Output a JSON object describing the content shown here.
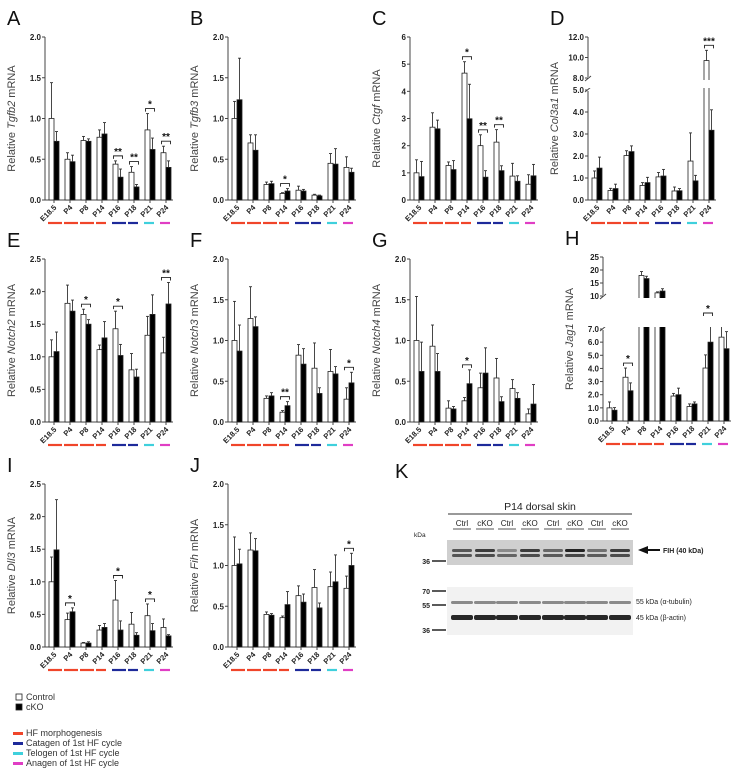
{
  "categories": [
    "E18.5",
    "P4",
    "P8",
    "P14",
    "P16",
    "P18",
    "P21",
    "P24"
  ],
  "phase_colors": [
    "#f0452a",
    "#f0452a",
    "#f0452a",
    "#f0452a",
    "#1e2a9a",
    "#1e2a9a",
    "#3fd0dc",
    "#e03ec4"
  ],
  "bar_colors": {
    "control": "#ffffff",
    "cko": "#000000"
  },
  "legend": {
    "groups": [
      {
        "label": "Control",
        "color": "#ffffff"
      },
      {
        "label": "cKO",
        "color": "#000000"
      }
    ],
    "phases": [
      {
        "label": "HF morphogenesis",
        "color": "#f0452a"
      },
      {
        "label": "Catagen of 1st HF cycle",
        "color": "#1e2a9a"
      },
      {
        "label": "Telogen of 1st HF cycle",
        "color": "#3fd0dc"
      },
      {
        "label": "Anagen of 1st HF cycle",
        "color": "#e03ec4"
      }
    ]
  },
  "chart_data": [
    {
      "panel": "A",
      "type": "bar",
      "ylabel_pre": "Relative ",
      "gene": "Tgfb2",
      "ylabel_post": " mRNA",
      "ylim": [
        0,
        2.0
      ],
      "yticks": [
        [
          0,
          "0.0"
        ],
        [
          0.5,
          "0.5"
        ],
        [
          1.0,
          "1.0"
        ],
        [
          1.5,
          "1.5"
        ],
        [
          2.0,
          "2.0"
        ]
      ],
      "series": [
        {
          "name": "Control",
          "values": [
            1.0,
            0.5,
            0.73,
            0.77,
            0.44,
            0.34,
            0.86,
            0.58
          ],
          "err": [
            0.44,
            0.08,
            0.05,
            0.09,
            0.04,
            0.07,
            0.2,
            0.08
          ]
        },
        {
          "name": "cKO",
          "values": [
            0.72,
            0.47,
            0.72,
            0.81,
            0.28,
            0.16,
            0.62,
            0.4
          ],
          "err": [
            0.12,
            0.08,
            0.03,
            0.14,
            0.1,
            0.03,
            0.14,
            0.08
          ]
        }
      ],
      "significance": [
        [
          "P16",
          "**"
        ],
        [
          "P18",
          "**"
        ],
        [
          "P21",
          "*"
        ],
        [
          "P24",
          "**"
        ]
      ]
    },
    {
      "panel": "B",
      "type": "bar",
      "ylabel_pre": "Relative ",
      "gene": "Tgfb3",
      "ylabel_post": " mRNA",
      "ylim": [
        0,
        2.0
      ],
      "yticks": [
        [
          0,
          "0.0"
        ],
        [
          0.5,
          "0.5"
        ],
        [
          1.0,
          "1.0"
        ],
        [
          1.5,
          "1.5"
        ],
        [
          2.0,
          "2.0"
        ]
      ],
      "series": [
        {
          "name": "Control",
          "values": [
            1.0,
            0.7,
            0.19,
            0.08,
            0.12,
            0.06,
            0.45,
            0.4
          ],
          "err": [
            0.21,
            0.1,
            0.03,
            0.01,
            0.05,
            0.01,
            0.12,
            0.13
          ]
        },
        {
          "name": "cKO",
          "values": [
            1.23,
            0.61,
            0.2,
            0.11,
            0.11,
            0.05,
            0.44,
            0.34
          ],
          "err": [
            0.51,
            0.19,
            0.03,
            0.03,
            0.02,
            0.01,
            0.19,
            0.05
          ]
        }
      ],
      "significance": [
        [
          "P14",
          "*"
        ]
      ]
    },
    {
      "panel": "C",
      "type": "bar",
      "ylabel_pre": "Relative ",
      "gene": "Ctgf",
      "ylabel_post": " mRNA",
      "ylim": [
        0,
        6
      ],
      "yticks": [
        [
          0,
          "0"
        ],
        [
          1,
          "1"
        ],
        [
          2,
          "2"
        ],
        [
          3,
          "3"
        ],
        [
          4,
          "4"
        ],
        [
          5,
          "5"
        ],
        [
          6,
          "6"
        ]
      ],
      "series": [
        {
          "name": "Control",
          "values": [
            1.0,
            2.68,
            1.27,
            4.67,
            2.0,
            2.13,
            0.88,
            0.58
          ],
          "err": [
            0.48,
            0.53,
            0.13,
            0.42,
            0.4,
            0.46,
            0.47,
            0.35
          ]
        },
        {
          "name": "cKO",
          "values": [
            0.86,
            2.62,
            1.12,
            2.99,
            0.84,
            1.08,
            0.69,
            0.89
          ],
          "err": [
            0.56,
            0.32,
            0.33,
            1.27,
            0.24,
            0.18,
            0.2,
            0.42
          ]
        }
      ],
      "significance": [
        [
          "P14",
          "*"
        ],
        [
          "P16",
          "**"
        ],
        [
          "P18",
          "**"
        ]
      ]
    },
    {
      "panel": "D",
      "type": "bar",
      "ylabel_pre": "Relative ",
      "gene": "Col3a1",
      "ylabel_post": " mRNA",
      "ylim": [
        0,
        12.0
      ],
      "axis_break": [
        5.0,
        8.0
      ],
      "yticks": [
        [
          0,
          "0.0"
        ],
        [
          1,
          "1.0"
        ],
        [
          2,
          "2.0"
        ],
        [
          3,
          "3.0"
        ],
        [
          4,
          "4.0"
        ],
        [
          5,
          "5.0"
        ],
        [
          8,
          "8.0"
        ],
        [
          10,
          "10.0"
        ],
        [
          12,
          "12.0"
        ]
      ],
      "series": [
        {
          "name": "Control",
          "values": [
            1.0,
            0.43,
            2.02,
            0.66,
            1.05,
            0.41,
            1.77,
            9.7
          ],
          "err": [
            0.32,
            0.1,
            0.22,
            0.13,
            0.2,
            0.18,
            1.28,
            1.0
          ]
        },
        {
          "name": "cKO",
          "values": [
            1.45,
            0.52,
            2.2,
            0.79,
            1.09,
            0.42,
            0.87,
            3.17
          ],
          "err": [
            0.5,
            0.2,
            0.26,
            0.24,
            0.3,
            0.1,
            0.25,
            0.93
          ]
        }
      ],
      "significance": [
        [
          "P24",
          "***"
        ]
      ]
    },
    {
      "panel": "E",
      "type": "bar",
      "ylabel_pre": "Relative ",
      "gene": "Notch2",
      "ylabel_post": " mRNA",
      "ylim": [
        0,
        2.5
      ],
      "yticks": [
        [
          0,
          "0.0"
        ],
        [
          0.5,
          "0.5"
        ],
        [
          1.0,
          "1.0"
        ],
        [
          1.5,
          "1.5"
        ],
        [
          2.0,
          "2.0"
        ],
        [
          2.5,
          "2.5"
        ]
      ],
      "series": [
        {
          "name": "Control",
          "values": [
            1.0,
            1.82,
            1.65,
            1.11,
            1.43,
            0.8,
            1.33,
            1.06
          ],
          "err": [
            0.26,
            0.28,
            0.08,
            0.07,
            0.27,
            0.25,
            0.29,
            0.24
          ]
        },
        {
          "name": "cKO",
          "values": [
            1.08,
            1.7,
            1.5,
            1.29,
            1.02,
            0.69,
            1.65,
            1.81
          ],
          "err": [
            0.3,
            0.17,
            0.07,
            0.25,
            0.17,
            0.12,
            0.3,
            0.33
          ]
        }
      ],
      "significance": [
        [
          "P8",
          "*"
        ],
        [
          "P16",
          "*"
        ],
        [
          "P24",
          "**"
        ]
      ]
    },
    {
      "panel": "F",
      "type": "bar",
      "ylabel_pre": "Relative ",
      "gene": "Notch3",
      "ylabel_post": " mRNA",
      "ylim": [
        0,
        2.0
      ],
      "yticks": [
        [
          0,
          "0.0"
        ],
        [
          0.5,
          "0.5"
        ],
        [
          1.0,
          "1.0"
        ],
        [
          1.5,
          "1.5"
        ],
        [
          2.0,
          "2.0"
        ]
      ],
      "series": [
        {
          "name": "Control",
          "values": [
            1.0,
            1.27,
            0.29,
            0.12,
            0.82,
            0.66,
            0.62,
            0.28
          ],
          "err": [
            0.48,
            0.39,
            0.03,
            0.02,
            0.13,
            0.31,
            0.27,
            0.14
          ]
        },
        {
          "name": "cKO",
          "values": [
            0.87,
            1.17,
            0.32,
            0.2,
            0.71,
            0.35,
            0.59,
            0.48
          ],
          "err": [
            0.32,
            0.12,
            0.04,
            0.05,
            0.19,
            0.07,
            0.09,
            0.13
          ]
        }
      ],
      "significance": [
        [
          "P14",
          "**"
        ],
        [
          "P24",
          "*"
        ]
      ]
    },
    {
      "panel": "G",
      "type": "bar",
      "ylabel_pre": "Relative ",
      "gene": "Notch4",
      "ylabel_post": " mRNA",
      "ylim": [
        0,
        2.0
      ],
      "yticks": [
        [
          0,
          "0.0"
        ],
        [
          0.5,
          "0.5"
        ],
        [
          1.0,
          "1.0"
        ],
        [
          1.5,
          "1.5"
        ],
        [
          2.0,
          "2.0"
        ]
      ],
      "series": [
        {
          "name": "Control",
          "values": [
            1.0,
            0.93,
            0.17,
            0.26,
            0.42,
            0.54,
            0.41,
            0.1
          ],
          "err": [
            0.54,
            0.26,
            0.09,
            0.04,
            0.18,
            0.24,
            0.11,
            0.06
          ]
        },
        {
          "name": "cKO",
          "values": [
            0.62,
            0.62,
            0.16,
            0.47,
            0.6,
            0.25,
            0.29,
            0.22
          ],
          "err": [
            0.36,
            0.22,
            0.03,
            0.17,
            0.31,
            0.06,
            0.07,
            0.24
          ]
        }
      ],
      "significance": [
        [
          "P14",
          "*"
        ]
      ]
    },
    {
      "panel": "H",
      "type": "bar",
      "ylabel_pre": "Relative ",
      "gene": "Jag1",
      "ylabel_post": " mRNA",
      "ylim": [
        0,
        25
      ],
      "axis_break": [
        7.0,
        10
      ],
      "yticks": [
        [
          0,
          "0.0"
        ],
        [
          1,
          "1.0"
        ],
        [
          2,
          "2.0"
        ],
        [
          3,
          "3.0"
        ],
        [
          4,
          "4.0"
        ],
        [
          5,
          "5.0"
        ],
        [
          6,
          "6.0"
        ],
        [
          7,
          "7.0"
        ],
        [
          10,
          "10"
        ],
        [
          15,
          "15"
        ],
        [
          20,
          "20"
        ],
        [
          25,
          "25"
        ]
      ],
      "series": [
        {
          "name": "Control",
          "values": [
            1.0,
            3.33,
            17.9,
            11.2,
            1.9,
            1.1,
            4.03,
            6.38
          ],
          "err": [
            0.45,
            0.7,
            1.5,
            0.4,
            0.2,
            0.2,
            1.0,
            2.3
          ]
        },
        {
          "name": "cKO",
          "values": [
            0.82,
            2.3,
            16.7,
            11.9,
            2.0,
            1.3,
            6.0,
            5.5
          ],
          "err": [
            0.2,
            0.6,
            0.9,
            0.9,
            0.5,
            0.15,
            2.0,
            1.3
          ]
        }
      ],
      "significance": [
        [
          "P4",
          "*"
        ],
        [
          "P21",
          "*"
        ]
      ]
    },
    {
      "panel": "I",
      "type": "bar",
      "ylabel_pre": "Relative ",
      "gene": "Dll3",
      "ylabel_post": " mRNA",
      "ylim": [
        0,
        2.5
      ],
      "yticks": [
        [
          0,
          "0.0"
        ],
        [
          0.5,
          "0.5"
        ],
        [
          1.0,
          "1.0"
        ],
        [
          1.5,
          "1.5"
        ],
        [
          2.0,
          "2.0"
        ],
        [
          2.5,
          "2.5"
        ]
      ],
      "series": [
        {
          "name": "Control",
          "values": [
            1.0,
            0.42,
            0.06,
            0.26,
            0.72,
            0.35,
            0.48,
            0.3
          ],
          "err": [
            0.38,
            0.1,
            0.01,
            0.07,
            0.3,
            0.18,
            0.18,
            0.13
          ]
        },
        {
          "name": "cKO",
          "values": [
            1.49,
            0.54,
            0.06,
            0.3,
            0.26,
            0.18,
            0.25,
            0.17
          ],
          "err": [
            0.77,
            0.06,
            0.02,
            0.06,
            0.14,
            0.04,
            0.11,
            0.02
          ]
        }
      ],
      "significance": [
        [
          "P4",
          "*"
        ],
        [
          "P16",
          "*"
        ],
        [
          "P21",
          "*"
        ]
      ]
    },
    {
      "panel": "J",
      "type": "bar",
      "ylabel_pre": "Relative ",
      "gene": "Fih",
      "ylabel_post": " mRNA",
      "ylim": [
        0,
        2.0
      ],
      "yticks": [
        [
          0,
          "0.0"
        ],
        [
          0.5,
          "0.5"
        ],
        [
          1.0,
          "1.0"
        ],
        [
          1.5,
          "1.5"
        ],
        [
          2.0,
          "2.0"
        ]
      ],
      "series": [
        {
          "name": "Control",
          "values": [
            1.0,
            1.19,
            0.4,
            0.36,
            0.63,
            0.73,
            0.74,
            0.72
          ],
          "err": [
            0.35,
            0.21,
            0.03,
            0.02,
            0.12,
            0.22,
            0.18,
            0.15
          ]
        },
        {
          "name": "cKO",
          "values": [
            1.02,
            1.18,
            0.39,
            0.52,
            0.55,
            0.48,
            0.8,
            1.0
          ],
          "err": [
            0.18,
            0.15,
            0.02,
            0.16,
            0.1,
            0.06,
            0.33,
            0.15
          ]
        }
      ],
      "significance": [
        [
          "P24",
          "*"
        ]
      ]
    }
  ],
  "blot": {
    "panel": "K",
    "title": "P14 dorsal skin",
    "lanes": [
      "Ctrl",
      "cKO",
      "Ctrl",
      "cKO",
      "Ctrl",
      "cKO",
      "Ctrl",
      "cKO"
    ],
    "kda_label": "kDa",
    "top_markers": [
      "36"
    ],
    "top_band_label": "FIH (40 kDa)",
    "bottom_markers": [
      "70",
      "55",
      "36"
    ],
    "bottom_band_labels": [
      "55 kDa (α-tubulin)",
      "45 kDa (β-actin)"
    ]
  }
}
